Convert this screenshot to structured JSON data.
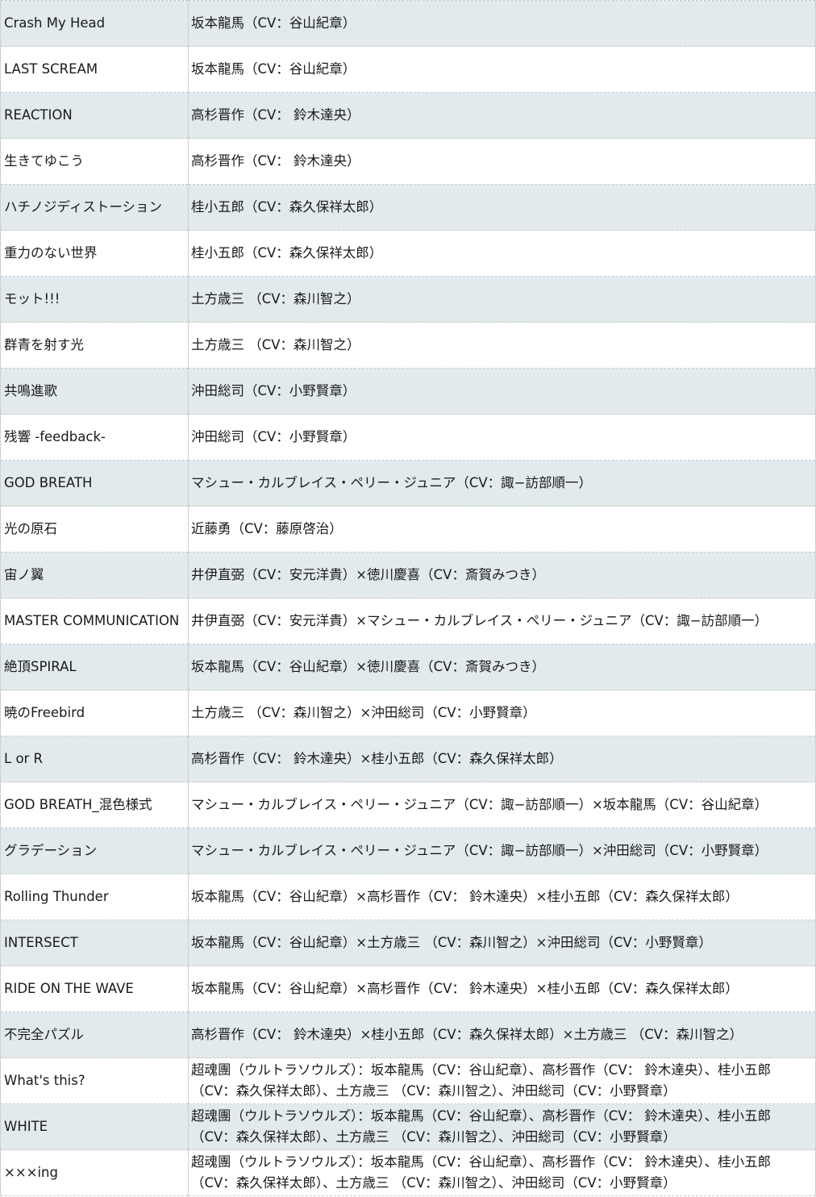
{
  "rows": [
    {
      "song": "Crash My Head",
      "singers": "坂本龍馬（CV：谷山紀章）"
    },
    {
      "song": "LAST SCREAM",
      "singers": "坂本龍馬（CV：谷山紀章）"
    },
    {
      "song": "REACTION",
      "singers": "高杉晋作（CV： 鈴木達央）"
    },
    {
      "song": "生きてゆこう",
      "singers": "高杉晋作（CV： 鈴木達央）"
    },
    {
      "song": "ハチノジディストーション",
      "singers": "桂小五郎（CV：森久保祥太郎）"
    },
    {
      "song": "重力のない世界",
      "singers": "桂小五郎（CV：森久保祥太郎）"
    },
    {
      "song": "モット!!!",
      "singers": "土方歳三 （CV：森川智之）"
    },
    {
      "song": "群青を射す光",
      "singers": "土方歳三 （CV：森川智之）"
    },
    {
      "song": "共鳴進歌",
      "singers": "沖田総司（CV：小野賢章）"
    },
    {
      "song": "残響 -feedback-",
      "singers": "沖田総司（CV：小野賢章）"
    },
    {
      "song": "GOD BREATH",
      "singers": "マシュー・カルブレイス・ペリー・ジュニア（CV：諏−訪部順一）"
    },
    {
      "song": "光の原石",
      "singers": "近藤勇（CV：藤原啓治）"
    },
    {
      "song": "宙ノ翼",
      "singers": "井伊直弼（CV：安元洋貴）×徳川慶喜（CV：斎賀みつき）"
    },
    {
      "song": "MASTER COMMUNICATION",
      "singers": "井伊直弼（CV：安元洋貴）×マシュー・カルブレイス・ペリー・ジュニア（CV：諏−訪部順一）"
    },
    {
      "song": "絶頂SPIRAL",
      "singers": "坂本龍馬（CV：谷山紀章）×徳川慶喜（CV：斎賀みつき）"
    },
    {
      "song": "暁のFreebird",
      "singers": "土方歳三 （CV：森川智之）×沖田総司（CV：小野賢章）"
    },
    {
      "song": "L or R",
      "singers": "高杉晋作（CV： 鈴木達央）×桂小五郎（CV：森久保祥太郎）"
    },
    {
      "song": "GOD BREATH_混色様式",
      "singers": "マシュー・カルブレイス・ペリー・ジュニア（CV：諏−訪部順一）×坂本龍馬（CV：谷山紀章）"
    },
    {
      "song": "グラデーション",
      "singers": "マシュー・カルブレイス・ペリー・ジュニア（CV：諏−訪部順一）×沖田総司（CV：小野賢章）"
    },
    {
      "song": "Rolling Thunder",
      "singers": "坂本龍馬（CV：谷山紀章）×高杉晋作（CV： 鈴木達央）×桂小五郎（CV：森久保祥太郎）"
    },
    {
      "song": "INTERSECT",
      "singers": "坂本龍馬（CV：谷山紀章）×土方歳三 （CV：森川智之）×沖田総司（CV：小野賢章）"
    },
    {
      "song": "RIDE ON THE WAVE",
      "singers": "坂本龍馬（CV：谷山紀章）×高杉晋作（CV： 鈴木達央）×桂小五郎（CV：森久保祥太郎）"
    },
    {
      "song": "不完全パズル",
      "singers": "高杉晋作（CV： 鈴木達央）×桂小五郎（CV：森久保祥太郎）×土方歳三 （CV：森川智之）"
    },
    {
      "song": "What's this?",
      "singers": "超魂團（ウルトラソウルズ）：坂本龍馬（CV：谷山紀章）、高杉晋作（CV： 鈴木達央）、桂小五郎（CV：森久保祥太郎）、土方歳三 （CV：森川智之）、沖田総司（CV：小野賢章）"
    },
    {
      "song": "WHITE",
      "singers": "超魂團（ウルトラソウルズ）：坂本龍馬（CV：谷山紀章）、高杉晋作（CV： 鈴木達央）、桂小五郎（CV：森久保祥太郎）、土方歳三 （CV：森川智之）、沖田総司（CV：小野賢章）"
    },
    {
      "song": "×××ing",
      "singers": "超魂團（ウルトラソウルズ）：坂本龍馬（CV：谷山紀章）、高杉晋作（CV： 鈴木達央）、桂小五郎（CV：森久保祥太郎）、土方歳三 （CV：森川智之）、沖田総司（CV：小野賢章）"
    }
  ]
}
